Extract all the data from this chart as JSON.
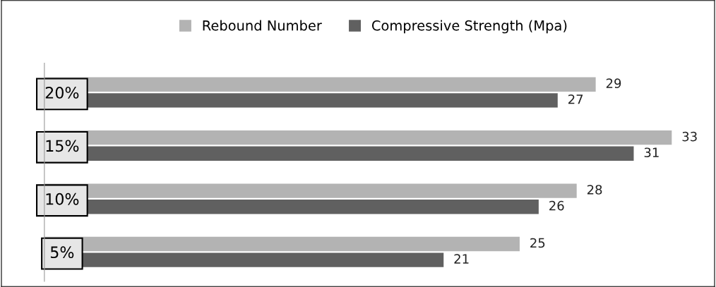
{
  "chart_data": {
    "type": "bar",
    "orientation": "horizontal",
    "categories": [
      "20%",
      "15%",
      "10%",
      "5%"
    ],
    "series": [
      {
        "name": "Rebound Number",
        "color": "#b3b3b3",
        "values": [
          29,
          33,
          28,
          25
        ]
      },
      {
        "name": "Compressive Strength (Mpa)",
        "color": "#606060",
        "values": [
          27,
          31,
          26,
          21
        ]
      }
    ],
    "tick_labels": "y",
    "data_labels": true,
    "legend": "top",
    "grid": false
  }
}
